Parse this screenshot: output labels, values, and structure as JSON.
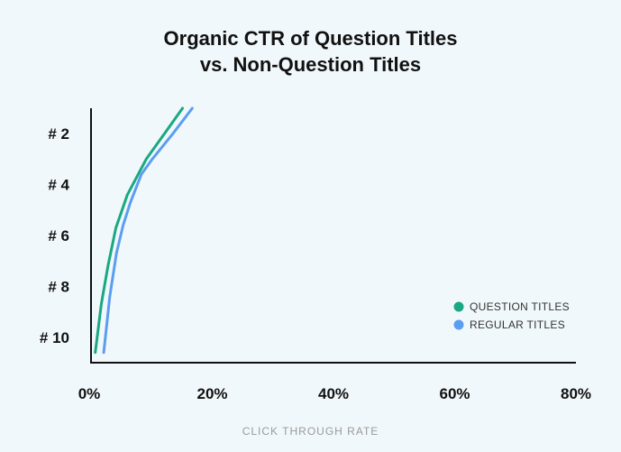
{
  "chart_data": {
    "type": "line",
    "title_lines": [
      "Organic CTR of Question Titles",
      "vs. Non-Question Titles"
    ],
    "xlabel": "CLICK THROUGH RATE",
    "ylabel": "",
    "xlim": [
      0,
      80
    ],
    "ylim": [
      1,
      11
    ],
    "y_reversed": true,
    "x_ticks": [
      {
        "value": 0,
        "label": "0%"
      },
      {
        "value": 20,
        "label": "20%"
      },
      {
        "value": 40,
        "label": "40%"
      },
      {
        "value": 60,
        "label": "60%"
      },
      {
        "value": 80,
        "label": "80%"
      }
    ],
    "y_ticks": [
      {
        "value": 2,
        "label": "# 2"
      },
      {
        "value": 4,
        "label": "# 4"
      },
      {
        "value": 6,
        "label": "# 6"
      },
      {
        "value": 8,
        "label": "# 8"
      },
      {
        "value": 10,
        "label": "# 10"
      }
    ],
    "grid": false,
    "legend_position": "bottom-right",
    "series": [
      {
        "name": "QUESTION TITLES",
        "color": "#1aa882",
        "points": [
          [
            15.1,
            1
          ],
          [
            12.1,
            2
          ],
          [
            9.1,
            3
          ],
          [
            6.0,
            4.4
          ],
          [
            4.1,
            5.7
          ],
          [
            2.8,
            7.2
          ],
          [
            1.7,
            8.7
          ],
          [
            0.7,
            10.6
          ]
        ]
      },
      {
        "name": "REGULAR TITLES",
        "color": "#5b9ef0",
        "points": [
          [
            16.7,
            1
          ],
          [
            13.5,
            2
          ],
          [
            10.1,
            3
          ],
          [
            8.3,
            3.6
          ],
          [
            6.5,
            4.7
          ],
          [
            5.3,
            5.6
          ],
          [
            4.2,
            6.7
          ],
          [
            3.1,
            8.4
          ],
          [
            2.1,
            10.6
          ]
        ]
      }
    ]
  }
}
